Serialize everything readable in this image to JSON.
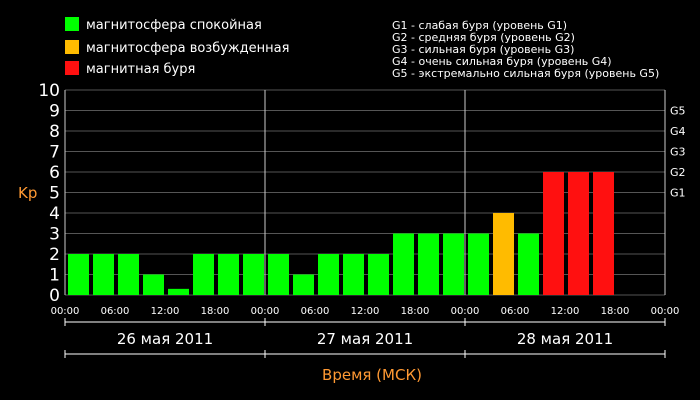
{
  "chart_data": {
    "type": "bar",
    "ylabel": "Kp",
    "xlabel": "Время (МСК)",
    "ylim": [
      0,
      10
    ],
    "y_ticks": [
      "0",
      "1",
      "2",
      "3",
      "4",
      "5",
      "6",
      "7",
      "8",
      "9",
      "10"
    ],
    "right_axis_labels": [
      "G1",
      "G2",
      "G3",
      "G4",
      "G5"
    ],
    "right_axis_kp": [
      5,
      6,
      7,
      8,
      9
    ],
    "x_tick_labels": [
      "00:00",
      "06:00",
      "12:00",
      "18:00",
      "00:00",
      "06:00",
      "12:00",
      "18:00",
      "00:00",
      "06:00",
      "12:00",
      "18:00",
      "00:00"
    ],
    "day_labels": [
      "26 мая 2011",
      "27 мая 2011",
      "28 мая 2011"
    ],
    "values": [
      2,
      2,
      2,
      1,
      0.3,
      2,
      2,
      2,
      2,
      1,
      2,
      2,
      2,
      3,
      3,
      3,
      3,
      4,
      3,
      6,
      6,
      6
    ],
    "legend": [
      {
        "label": "магнитосфера спокойная",
        "color": "#00ff00"
      },
      {
        "label": "магнитосфера возбужденная",
        "color": "#ffbb00"
      },
      {
        "label": "магнитная буря",
        "color": "#ff1010"
      }
    ],
    "storm_scale": [
      "G1 - слабая буря (уровень G1)",
      "G2 - средняя буря (уровень G2)",
      "G3 - сильная буря (уровень G3)",
      "G4 - очень сильная буря (уровень G4)",
      "G5 - экстремально сильная буря (уровень G5)"
    ]
  }
}
